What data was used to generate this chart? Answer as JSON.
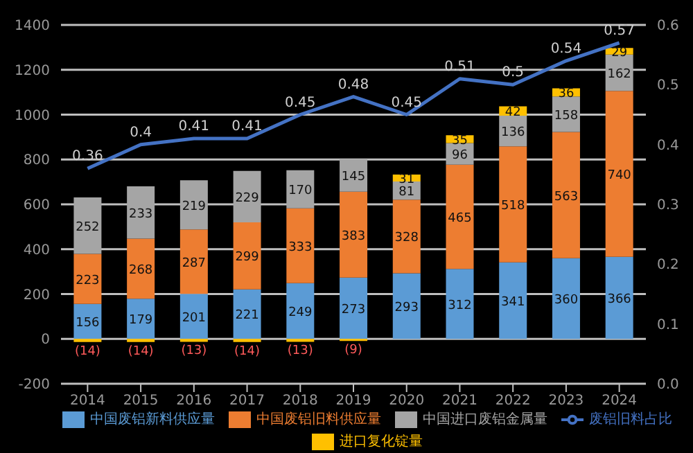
{
  "chart_data": {
    "type": "bar",
    "stacked": true,
    "categories": [
      "2014",
      "2015",
      "2016",
      "2017",
      "2018",
      "2019",
      "2020",
      "2021",
      "2022",
      "2023",
      "2024"
    ],
    "series": [
      {
        "name": "中国废铝新料供应量",
        "color": "#5b9bd5",
        "values": [
          156,
          179,
          201,
          221,
          249,
          273,
          293,
          312,
          341,
          360,
          366
        ]
      },
      {
        "name": "中国废铝旧料供应量",
        "color": "#ed7d31",
        "values": [
          223,
          268,
          287,
          299,
          333,
          383,
          328,
          465,
          518,
          563,
          740
        ]
      },
      {
        "name": "中国进口废铝金属量",
        "color": "#a5a5a5",
        "values": [
          252,
          233,
          219,
          229,
          170,
          145,
          81,
          96,
          136,
          158,
          162
        ]
      },
      {
        "name": "进口复化锭量",
        "color": "#ffc000",
        "values": [
          -14,
          -14,
          -13,
          -14,
          -13,
          -9,
          31,
          35,
          42,
          36,
          29
        ],
        "value_labels": [
          "(14)",
          "(14)",
          "(13)",
          "(14)",
          "(13)",
          "(9)",
          "31",
          "35",
          "42",
          "36",
          "29"
        ]
      },
      {
        "name": "废铝旧料占比",
        "type": "line",
        "axis": "y2",
        "color": "#4472c4",
        "marker": "none",
        "values": [
          0.36,
          0.4,
          0.41,
          0.41,
          0.45,
          0.48,
          0.45,
          0.51,
          0.5,
          0.54,
          0.57
        ]
      }
    ],
    "ylim": [
      -200,
      1400
    ],
    "yticks": [
      -200,
      0,
      200,
      400,
      600,
      800,
      1000,
      1200,
      1400
    ],
    "y2lim": [
      0,
      0.6
    ],
    "y2ticks": [
      {
        "value": 0,
        "label": "0.0"
      },
      {
        "value": 0.1,
        "label": "0.1"
      },
      {
        "value": 0.2,
        "label": "0.2"
      },
      {
        "value": 0.3,
        "label": "0.3"
      },
      {
        "value": 0.4,
        "label": "0.4"
      },
      {
        "value": 0.5,
        "label": "0.5"
      },
      {
        "value": 0.6,
        "label": "0.6"
      }
    ],
    "grid": "y",
    "legend": "bottom",
    "data_labels": true
  }
}
